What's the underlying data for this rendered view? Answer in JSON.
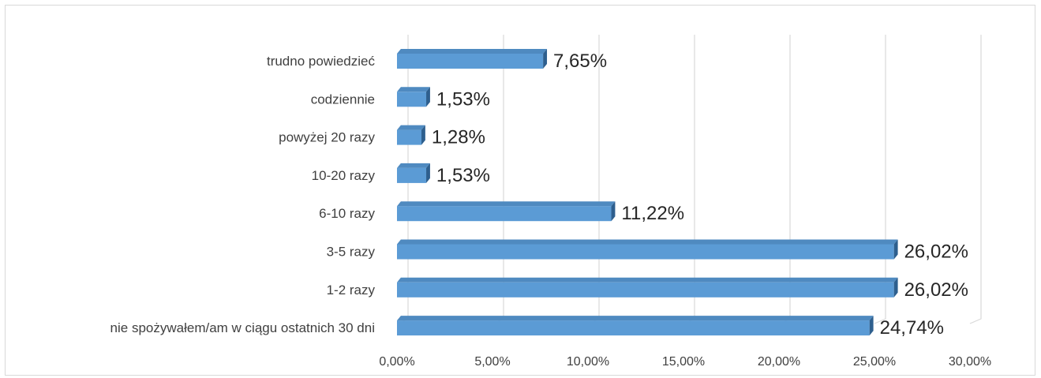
{
  "chart_data": {
    "type": "bar",
    "orientation": "horizontal",
    "categories": [
      "trudno powiedzieć",
      "codziennie",
      "powyżej 20 razy",
      "10-20 razy",
      "6-10 razy",
      "3-5 razy",
      "1-2 razy",
      "nie spożywałem/am w ciągu ostatnich 30 dni"
    ],
    "values": [
      7.65,
      1.53,
      1.28,
      1.53,
      11.22,
      26.02,
      26.02,
      24.74
    ],
    "data_labels": [
      "7,65%",
      "1,53%",
      "1,28%",
      "1,53%",
      "11,22%",
      "26,02%",
      "26,02%",
      "24,74%"
    ],
    "x_ticks": [
      0,
      5,
      10,
      15,
      20,
      25,
      30
    ],
    "x_tick_labels": [
      "0,00%",
      "5,00%",
      "10,00%",
      "15,00%",
      "20,00%",
      "25,00%",
      "30,00%"
    ],
    "xlim": [
      0,
      30
    ],
    "grid": true,
    "legend": "none",
    "title": "",
    "xlabel": "",
    "ylabel": "",
    "bar_color": "#5b9bd5",
    "bar_top_color": "#4f8ac0",
    "bar_side_color": "#2e5f8e",
    "grid_color": "#d9d9d9"
  }
}
